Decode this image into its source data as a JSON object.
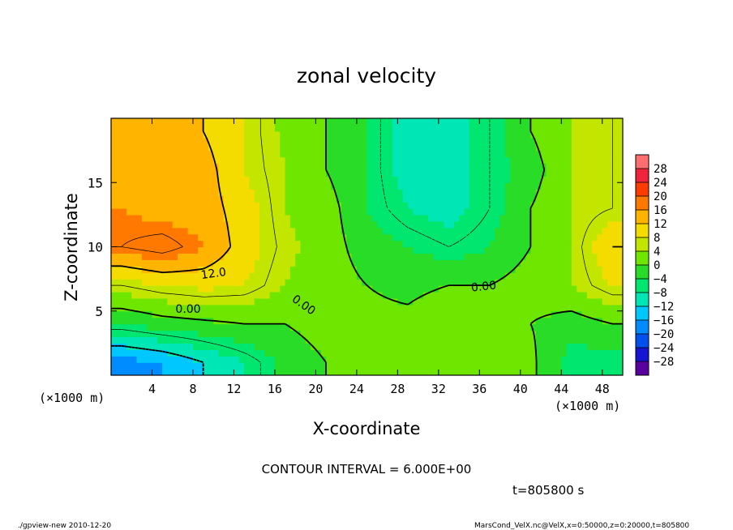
{
  "chart_data": {
    "type": "heatmap",
    "title": "zonal velocity",
    "xlabel": "X-coordinate",
    "ylabel": "Z-coordinate",
    "x_unit_left": "(×1000 m)",
    "x_unit_right": "(×1000 m)",
    "xlim": [
      0,
      50
    ],
    "ylim": [
      0,
      20
    ],
    "x_ticks": [
      4,
      8,
      12,
      16,
      20,
      24,
      28,
      32,
      36,
      40,
      44,
      48
    ],
    "y_ticks": [
      5,
      10,
      15
    ],
    "colorbar": {
      "labels": [
        "28",
        "24",
        "20",
        "16",
        "12",
        "8",
        "4",
        "0",
        "−4",
        "−8",
        "−12",
        "−16",
        "−20",
        "−24",
        "−28"
      ],
      "colors": [
        "#ff6e6e",
        "#f0243a",
        "#ff3c00",
        "#ff7800",
        "#ffb400",
        "#f5dc00",
        "#c3e600",
        "#6ee600",
        "#28dc28",
        "#00e66e",
        "#00e6b4",
        "#00c8ff",
        "#008cff",
        "#0050f0",
        "#1414d2",
        "#5a00a0"
      ]
    },
    "contour_labels": [
      "12.0",
      "0.00",
      "0.00",
      "0.00"
    ],
    "contour_interval_text": "CONTOUR INTERVAL = 6.000E+00",
    "field_samples": {
      "x": [
        1,
        5,
        9,
        13,
        17,
        21,
        25,
        29,
        33,
        37,
        41,
        45,
        49
      ],
      "z": [
        1,
        4,
        7,
        10,
        13,
        16,
        19
      ],
      "u": [
        [
          -18,
          -16,
          -12,
          -8,
          -3,
          0,
          2,
          4,
          3,
          4,
          1,
          -6,
          -6
        ],
        [
          -4,
          -2,
          -1,
          0,
          0,
          2,
          1,
          1,
          3,
          2,
          0,
          -2,
          0
        ],
        [
          6,
          8,
          9,
          8,
          4,
          2,
          0,
          -1,
          0,
          0,
          2,
          4,
          8
        ],
        [
          18,
          20,
          16,
          10,
          5,
          2,
          -2,
          -4,
          -6,
          -4,
          0,
          4,
          12
        ],
        [
          16,
          14,
          14,
          10,
          4,
          2,
          -4,
          -8,
          -10,
          -6,
          0,
          4,
          6
        ],
        [
          15,
          15,
          14,
          8,
          4,
          0,
          -4,
          -10,
          -10,
          -6,
          -2,
          4,
          6
        ],
        [
          16,
          16,
          12,
          8,
          3,
          0,
          -4,
          -10,
          -10,
          -6,
          0,
          4,
          6
        ]
      ]
    }
  },
  "footer": {
    "time": "t=805800 s",
    "program": "./gpview-new  2010-12-20",
    "source": "MarsCond_VelX.nc@VelX,x=0:50000,z=0:20000,t=805800"
  }
}
